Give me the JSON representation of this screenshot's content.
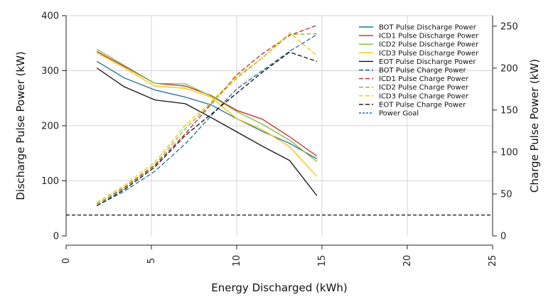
{
  "chart_data": {
    "type": "line",
    "xlabel": "Energy Discharged (kWh)",
    "ylabel": "Discharge Pulse Power (kW)",
    "y2label": "Charge Pulse Power (kW)",
    "xlim": [
      0,
      25
    ],
    "ylim": [
      0,
      400
    ],
    "y2lim": [
      0,
      262.5
    ],
    "xticks": [
      0,
      5,
      10,
      15,
      20,
      25
    ],
    "yticks": [
      0,
      100,
      200,
      300,
      400
    ],
    "y2ticks": [
      0,
      50,
      100,
      150,
      200,
      250
    ],
    "grid": true,
    "legend_position": "top-right",
    "series": [
      {
        "name": "BOT Pulse Discharge Power",
        "axis": "left",
        "style": "solid",
        "color": "#1f6e9c",
        "x": [
          1.8,
          3.4,
          5.2,
          7.0,
          8.5,
          10.0,
          11.5,
          13.1,
          14.7
        ],
        "y": [
          317,
          287,
          265,
          252,
          238,
          213,
          190,
          168,
          140
        ]
      },
      {
        "name": "ICD1 Pulse Discharge Power",
        "axis": "left",
        "style": "solid",
        "color": "#c62828",
        "x": [
          1.8,
          3.4,
          5.2,
          7.0,
          8.5,
          10.0,
          11.5,
          13.1,
          14.7
        ],
        "y": [
          335,
          308,
          277,
          272,
          255,
          228,
          212,
          180,
          145
        ]
      },
      {
        "name": "ICD2 Pulse Discharge Power",
        "axis": "left",
        "style": "solid",
        "color": "#7cbc3a",
        "x": [
          1.8,
          3.4,
          5.2,
          7.0,
          8.5,
          10.0,
          11.5,
          13.1,
          14.7
        ],
        "y": [
          339,
          310,
          277,
          276,
          254,
          226,
          203,
          174,
          135
        ]
      },
      {
        "name": "ICD3 Pulse Discharge Power",
        "axis": "left",
        "style": "solid",
        "color": "#f5c400",
        "x": [
          1.8,
          3.4,
          5.2,
          7.0,
          8.5,
          10.0,
          11.5,
          13.1,
          14.7
        ],
        "y": [
          333,
          305,
          272,
          268,
          252,
          213,
          193,
          162,
          108
        ]
      },
      {
        "name": "EOT Pulse Discharge Power",
        "axis": "left",
        "style": "solid",
        "color": "#111111",
        "x": [
          1.8,
          3.4,
          5.2,
          7.0,
          8.5,
          10.0,
          11.5,
          13.1,
          14.7
        ],
        "y": [
          305,
          271,
          247,
          240,
          215,
          189,
          163,
          137,
          73
        ]
      },
      {
        "name": "BOT Pulse Charge Power",
        "axis": "right",
        "style": "dashed",
        "color": "#1f6e9c",
        "x": [
          1.8,
          3.4,
          5.2,
          7.0,
          8.5,
          10.0,
          11.5,
          13.1,
          14.7
        ],
        "y": [
          36,
          53,
          77,
          110,
          143,
          175,
          197,
          220,
          240
        ]
      },
      {
        "name": "ICD1 Pulse Charge Power",
        "axis": "right",
        "style": "dashed",
        "color": "#c62828",
        "x": [
          1.8,
          3.4,
          5.2,
          7.0,
          8.5,
          10.0,
          11.5,
          13.1,
          14.7
        ],
        "y": [
          38,
          57,
          84,
          122,
          157,
          192,
          217,
          239,
          251
        ]
      },
      {
        "name": "ICD2 Pulse Charge Power",
        "axis": "right",
        "style": "dashed",
        "color": "#7cbc3a",
        "x": [
          1.8,
          3.4,
          5.2,
          7.0,
          8.5,
          10.0,
          11.5,
          13.1,
          14.7
        ],
        "y": [
          38,
          58,
          85,
          128,
          158,
          188,
          212,
          240,
          241
        ]
      },
      {
        "name": "ICD3 Pulse Charge Power",
        "axis": "right",
        "style": "dashed",
        "color": "#f5c400",
        "x": [
          1.8,
          3.4,
          5.2,
          7.0,
          8.5,
          10.0,
          11.5,
          13.1,
          14.7
        ],
        "y": [
          40,
          60,
          88,
          132,
          160,
          190,
          212,
          242,
          215
        ]
      },
      {
        "name": "EOT Pulse Charge Power",
        "axis": "right",
        "style": "dashed",
        "color": "#111111",
        "x": [
          1.8,
          3.4,
          5.2,
          7.0,
          8.5,
          10.0,
          11.5,
          13.1,
          14.7
        ],
        "y": [
          36,
          55,
          82,
          120,
          145,
          170,
          195,
          219,
          208
        ]
      },
      {
        "name": "Power Goal",
        "axis": "left",
        "style": "dotted",
        "color": "#111111",
        "x": [
          0,
          25
        ],
        "y": [
          38,
          38
        ],
        "legend_color": "#1f6e9c"
      }
    ]
  }
}
